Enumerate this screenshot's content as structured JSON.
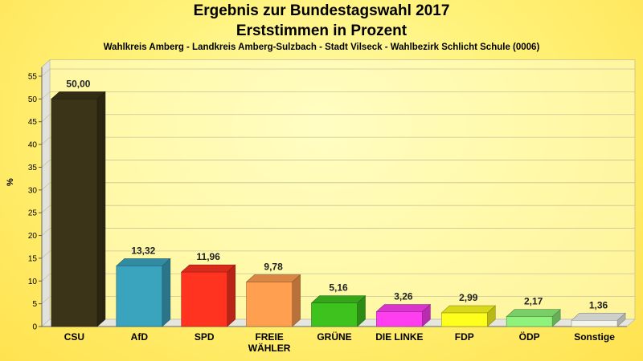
{
  "chart_data": {
    "type": "bar",
    "title": "Ergebnis zur Bundestagswahl 2017",
    "title_line2": "Erststimmen in Prozent",
    "subtitle": "Wahlkreis Amberg - Landkreis Amberg-Sulzbach - Stadt Vilseck - Wahlbezirk Schlicht Schule (0006)",
    "ylabel": "%",
    "ylim": [
      0,
      57
    ],
    "yticks": [
      0,
      5,
      10,
      15,
      20,
      25,
      30,
      35,
      40,
      45,
      50,
      55
    ],
    "categories": [
      "CSU",
      "AfD",
      "SPD",
      "FREIE\nWÄHLER",
      "GRÜNE",
      "DIE LINKE",
      "FDP",
      "ÖDP",
      "Sonstige"
    ],
    "values": [
      50.0,
      13.32,
      11.96,
      9.78,
      5.16,
      3.26,
      2.99,
      2.17,
      1.36
    ],
    "value_labels": [
      "50,00",
      "13,32",
      "11,96",
      "9,78",
      "5,16",
      "3,26",
      "2,99",
      "2,17",
      "1,36"
    ],
    "colors": [
      "#3b3418",
      "#3aa3bd",
      "#ff3320",
      "#ff9f4f",
      "#3ec21e",
      "#ff3ef0",
      "#ffff1e",
      "#8ff27a",
      "#f4f4ee"
    ],
    "grid": true
  }
}
